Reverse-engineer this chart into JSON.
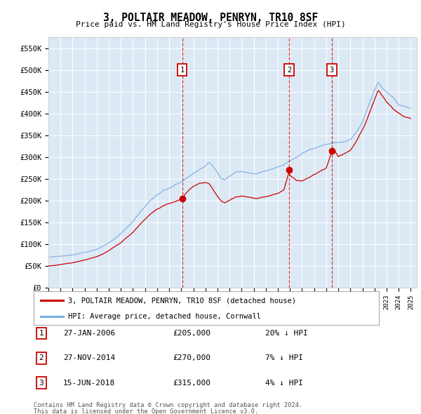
{
  "title": "3, POLTAIR MEADOW, PENRYN, TR10 8SF",
  "subtitle": "Price paid vs. HM Land Registry's House Price Index (HPI)",
  "ylim": [
    0,
    575000
  ],
  "yticks": [
    0,
    50000,
    100000,
    150000,
    200000,
    250000,
    300000,
    350000,
    400000,
    450000,
    500000,
    550000
  ],
  "ytick_labels": [
    "£0",
    "£50K",
    "£100K",
    "£150K",
    "£200K",
    "£250K",
    "£300K",
    "£350K",
    "£400K",
    "£450K",
    "£500K",
    "£550K"
  ],
  "xlim_start": 1995.0,
  "xlim_end": 2025.5,
  "plot_bg_color": "#dce9f5",
  "outer_bg_color": "#ffffff",
  "red_line_color": "#cc0000",
  "blue_line_color": "#7aace0",
  "grid_color": "#ffffff",
  "transaction_dates": [
    2006.08,
    2014.92,
    2018.46
  ],
  "transaction_prices": [
    205000,
    270000,
    315000
  ],
  "transaction_labels": [
    "1",
    "2",
    "3"
  ],
  "transaction_date_strs": [
    "27-JAN-2006",
    "27-NOV-2014",
    "15-JUN-2018"
  ],
  "transaction_price_strs": [
    "£205,000",
    "£270,000",
    "£315,000"
  ],
  "transaction_hpi_strs": [
    "20% ↓ HPI",
    "7% ↓ HPI",
    "4% ↓ HPI"
  ],
  "legend_red_label": "3, POLTAIR MEADOW, PENRYN, TR10 8SF (detached house)",
  "legend_blue_label": "HPI: Average price, detached house, Cornwall",
  "footer_line1": "Contains HM Land Registry data © Crown copyright and database right 2024.",
  "footer_line2": "This data is licensed under the Open Government Licence v3.0."
}
